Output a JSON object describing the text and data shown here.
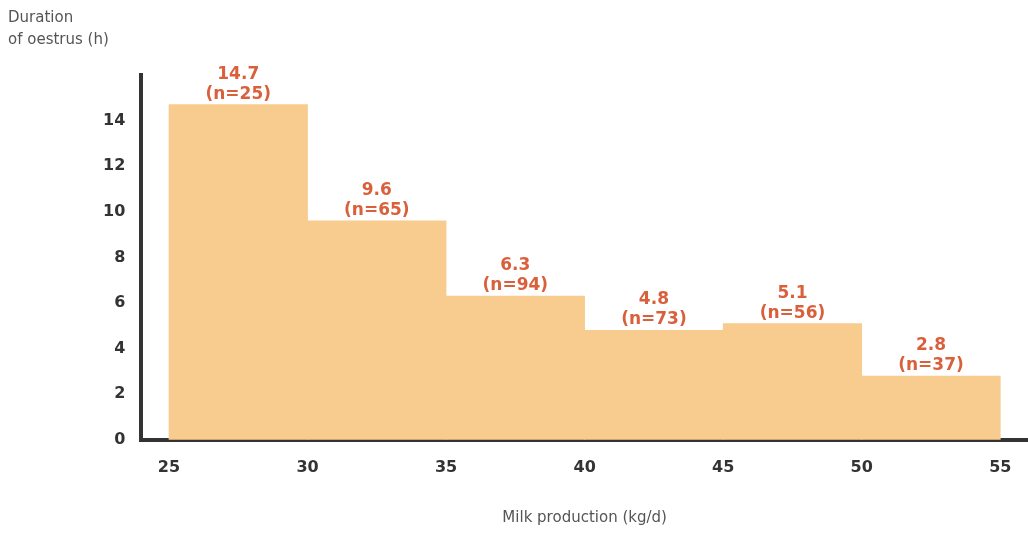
{
  "chart_data": {
    "type": "histogram",
    "ylabel": "Duration\nof oestrus (h)",
    "xlabel": "Milk production (kg/d)",
    "bins": [
      25,
      30,
      35,
      40,
      45,
      50,
      55
    ],
    "values": [
      14.7,
      9.6,
      6.3,
      4.8,
      5.1,
      2.8
    ],
    "value_labels": [
      "14.7\n(n=25)",
      "9.6\n(n=65)",
      "6.3\n(n=94)",
      "4.8\n(n=73)",
      "5.1\n(n=56)",
      "2.8\n(n=37)"
    ],
    "color": "#f8cb8e",
    "xlim": [
      24,
      56
    ],
    "xticks": [
      25,
      30,
      35,
      40,
      45,
      50,
      55
    ],
    "ylim": [
      0,
      16
    ],
    "yticks": [
      0,
      2,
      4,
      6,
      8,
      10,
      12,
      14
    ],
    "grid": false,
    "legend": false
  }
}
